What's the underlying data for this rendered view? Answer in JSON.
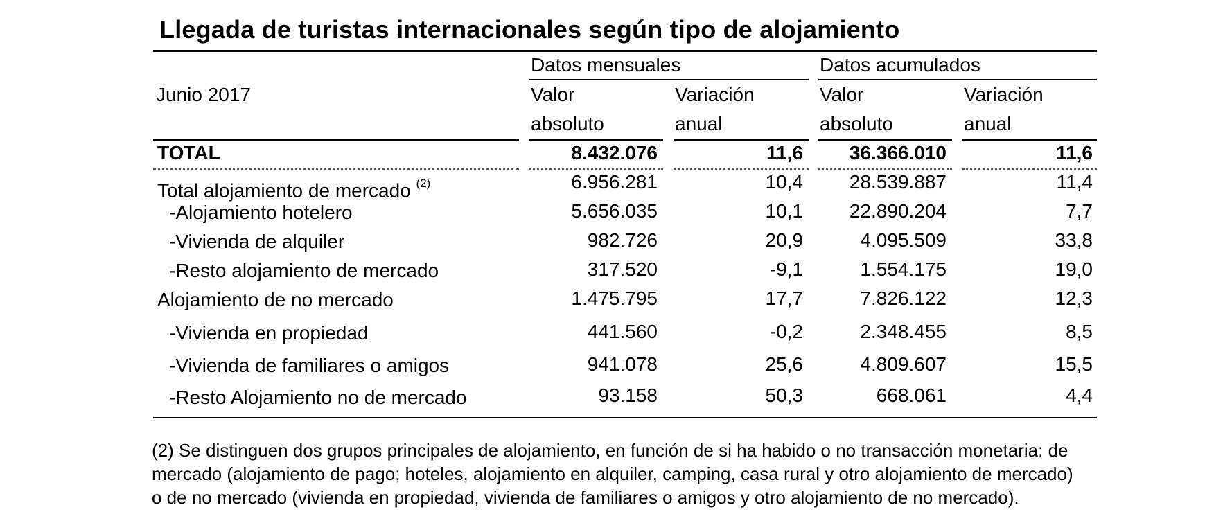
{
  "title": "Llegada de turistas internacionales según tipo de alojamiento",
  "header": {
    "period": "Junio 2017",
    "group_monthly": "Datos mensuales",
    "group_cumulative": "Datos acumulados",
    "col_value_1": "Valor",
    "col_value_2": "absoluto",
    "col_var_1": "Variación",
    "col_var_2": "anual"
  },
  "rows": [
    {
      "label": "TOTAL",
      "sup": "",
      "m_val": "8.432.076",
      "m_var": "11,6",
      "a_val": "36.366.010",
      "a_var": "11,6"
    },
    {
      "label": "Total alojamiento de mercado ",
      "sup": "(2)",
      "m_val": "6.956.281",
      "m_var": "10,4",
      "a_val": "28.539.887",
      "a_var": "11,4"
    },
    {
      "label": "-Alojamiento hotelero",
      "sup": "",
      "m_val": "5.656.035",
      "m_var": "10,1",
      "a_val": "22.890.204",
      "a_var": "7,7"
    },
    {
      "label": "-Vivienda de alquiler",
      "sup": "",
      "m_val": "982.726",
      "m_var": "20,9",
      "a_val": "4.095.509",
      "a_var": "33,8"
    },
    {
      "label": "-Resto alojamiento de mercado",
      "sup": "",
      "m_val": "317.520",
      "m_var": "-9,1",
      "a_val": "1.554.175",
      "a_var": "19,0"
    },
    {
      "label": "Alojamiento de no mercado",
      "sup": "",
      "m_val": "1.475.795",
      "m_var": "17,7",
      "a_val": "7.826.122",
      "a_var": "12,3"
    },
    {
      "label": "-Vivienda en propiedad",
      "sup": "",
      "m_val": "441.560",
      "m_var": "-0,2",
      "a_val": "2.348.455",
      "a_var": "8,5"
    },
    {
      "label": "-Vivienda de familiares o amigos",
      "sup": "",
      "m_val": "941.078",
      "m_var": "25,6",
      "a_val": "4.809.607",
      "a_var": "15,5"
    },
    {
      "label": "-Resto Alojamiento no de mercado",
      "sup": "",
      "m_val": "93.158",
      "m_var": "50,3",
      "a_val": "668.061",
      "a_var": "4,4"
    }
  ],
  "footnote": [
    "(2) Se distinguen dos grupos principales de alojamiento, en función de si ha habido o no transacción monetaria: de",
    "mercado (alojamiento de pago; hoteles, alojamiento en alquiler, camping, casa rural y otro alojamiento de mercado)",
    "o de no mercado (vivienda en propiedad, vivienda de familiares o amigos y otro alojamiento de no mercado)."
  ]
}
